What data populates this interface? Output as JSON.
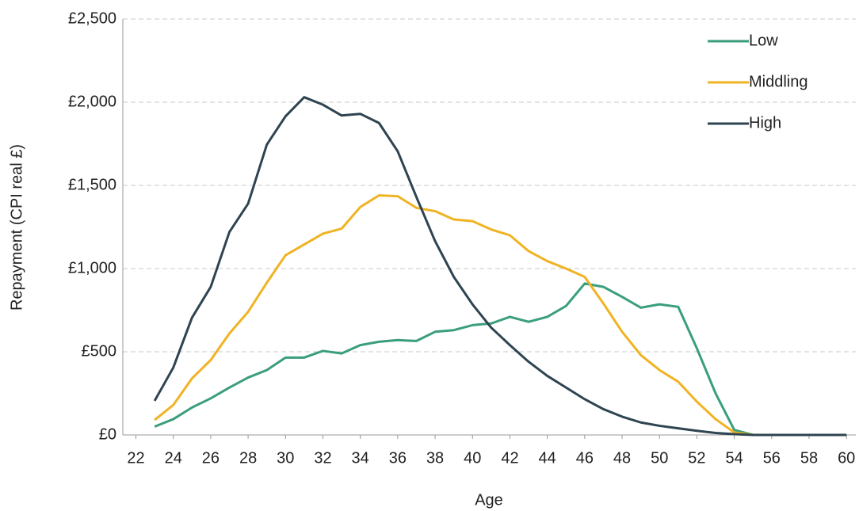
{
  "chart_data": {
    "type": "line",
    "x_label": "Age",
    "y_label": "Repayment (CPI real £)",
    "x": [
      23,
      24,
      25,
      26,
      27,
      28,
      29,
      30,
      31,
      32,
      33,
      34,
      35,
      36,
      37,
      38,
      39,
      40,
      41,
      42,
      43,
      44,
      45,
      46,
      47,
      48,
      49,
      50,
      51,
      52,
      53,
      54,
      55,
      56,
      57,
      58,
      59,
      60
    ],
    "series": [
      {
        "name": "Low",
        "color": "#3a9e7c",
        "values": [
          50,
          95,
          165,
          220,
          285,
          345,
          390,
          465,
          465,
          505,
          490,
          540,
          560,
          570,
          565,
          620,
          630,
          660,
          670,
          710,
          680,
          710,
          775,
          910,
          890,
          830,
          765,
          785,
          770,
          520,
          250,
          30,
          0,
          0,
          0,
          0,
          0,
          0
        ]
      },
      {
        "name": "Middling",
        "color": "#f0b323",
        "values": [
          90,
          180,
          340,
          450,
          610,
          740,
          915,
          1080,
          1145,
          1210,
          1240,
          1370,
          1440,
          1435,
          1365,
          1345,
          1295,
          1285,
          1235,
          1200,
          1105,
          1045,
          1000,
          950,
          790,
          620,
          480,
          390,
          320,
          200,
          95,
          15,
          0,
          0,
          0,
          0,
          0,
          0
        ]
      },
      {
        "name": "High",
        "color": "#2e4450",
        "values": [
          205,
          405,
          705,
          890,
          1220,
          1390,
          1745,
          1915,
          2030,
          1985,
          1920,
          1930,
          1875,
          1705,
          1430,
          1165,
          950,
          785,
          645,
          540,
          440,
          355,
          285,
          215,
          155,
          110,
          75,
          55,
          40,
          25,
          12,
          5,
          0,
          0,
          0,
          0,
          0,
          0
        ]
      }
    ],
    "xlim": [
      21.3,
      60.5
    ],
    "xticks": [
      22,
      24,
      26,
      28,
      30,
      32,
      34,
      36,
      38,
      40,
      42,
      44,
      46,
      48,
      50,
      52,
      54,
      56,
      58,
      60
    ],
    "ylim": [
      0,
      2500
    ],
    "yticks": [
      {
        "value": 0,
        "label": "£0"
      },
      {
        "value": 500,
        "label": "£500"
      },
      {
        "value": 1000,
        "label": "£1,000"
      },
      {
        "value": 1500,
        "label": "£1,500"
      },
      {
        "value": 2000,
        "label": "£2,000"
      },
      {
        "value": 2500,
        "label": "£2,500"
      }
    ],
    "grid": true,
    "legend": "top-right"
  }
}
